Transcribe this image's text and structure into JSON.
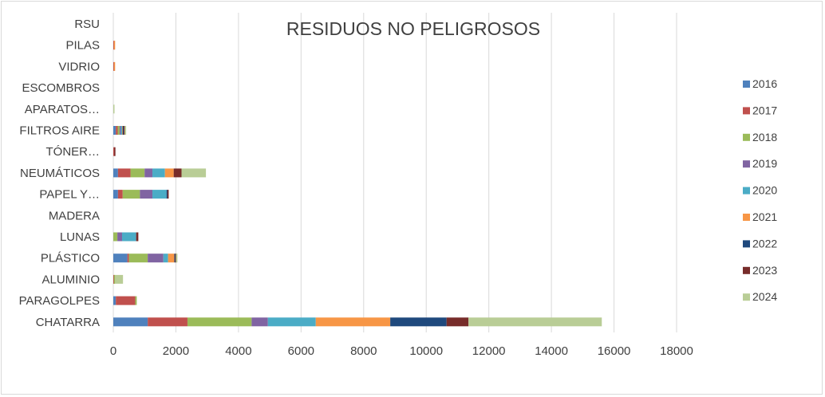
{
  "chart_data": {
    "type": "bar",
    "orientation": "horizontal",
    "stacked": true,
    "title": "RESIDUOS NO PELIGROSOS",
    "categories": [
      "RSU",
      "PILAS",
      "VIDRIO",
      "ESCOMBROS",
      "APARATOS…",
      "FILTROS AIRE",
      "TÓNER…",
      "NEUMÁTICOS",
      "PAPEL Y…",
      "MADERA",
      "LUNAS",
      "PLÁSTICO",
      "ALUMINIO",
      "PARAGOLPES",
      "CHATARRA"
    ],
    "series": [
      {
        "name": "2016",
        "color": "#4f81bd",
        "values": [
          0,
          0,
          0,
          0,
          0,
          80,
          0,
          150,
          150,
          0,
          0,
          450,
          0,
          80,
          1100
        ]
      },
      {
        "name": "2017",
        "color": "#c0504d",
        "values": [
          0,
          20,
          20,
          0,
          0,
          60,
          30,
          400,
          150,
          0,
          0,
          50,
          20,
          620,
          1270
        ]
      },
      {
        "name": "2018",
        "color": "#9bbb59",
        "values": [
          0,
          0,
          0,
          0,
          0,
          60,
          0,
          450,
          550,
          0,
          130,
          600,
          40,
          50,
          2050
        ]
      },
      {
        "name": "2019",
        "color": "#8064a2",
        "values": [
          0,
          0,
          0,
          0,
          0,
          40,
          0,
          250,
          400,
          0,
          150,
          500,
          0,
          0,
          520
        ]
      },
      {
        "name": "2020",
        "color": "#4bacc6",
        "values": [
          0,
          0,
          0,
          0,
          0,
          40,
          0,
          400,
          450,
          0,
          450,
          150,
          0,
          0,
          1530
        ]
      },
      {
        "name": "2021",
        "color": "#f79646",
        "values": [
          0,
          20,
          20,
          0,
          0,
          20,
          0,
          280,
          0,
          0,
          0,
          200,
          0,
          0,
          2380
        ]
      },
      {
        "name": "2022",
        "color": "#1f497d",
        "values": [
          0,
          0,
          0,
          0,
          0,
          30,
          0,
          0,
          30,
          0,
          0,
          30,
          0,
          0,
          1800
        ]
      },
      {
        "name": "2023",
        "color": "#772c2a",
        "values": [
          0,
          0,
          0,
          0,
          0,
          30,
          30,
          250,
          40,
          0,
          70,
          20,
          0,
          0,
          700
        ]
      },
      {
        "name": "2024",
        "color": "#b9cd96",
        "values": [
          0,
          0,
          0,
          0,
          30,
          50,
          0,
          780,
          0,
          0,
          0,
          50,
          250,
          0,
          4260
        ]
      }
    ],
    "xlim": [
      0,
      18000
    ],
    "xticks": [
      "0",
      "2000",
      "4000",
      "6000",
      "8000",
      "10000",
      "12000",
      "14000",
      "16000",
      "18000"
    ],
    "grid": "vertical",
    "legend_position": "right"
  }
}
